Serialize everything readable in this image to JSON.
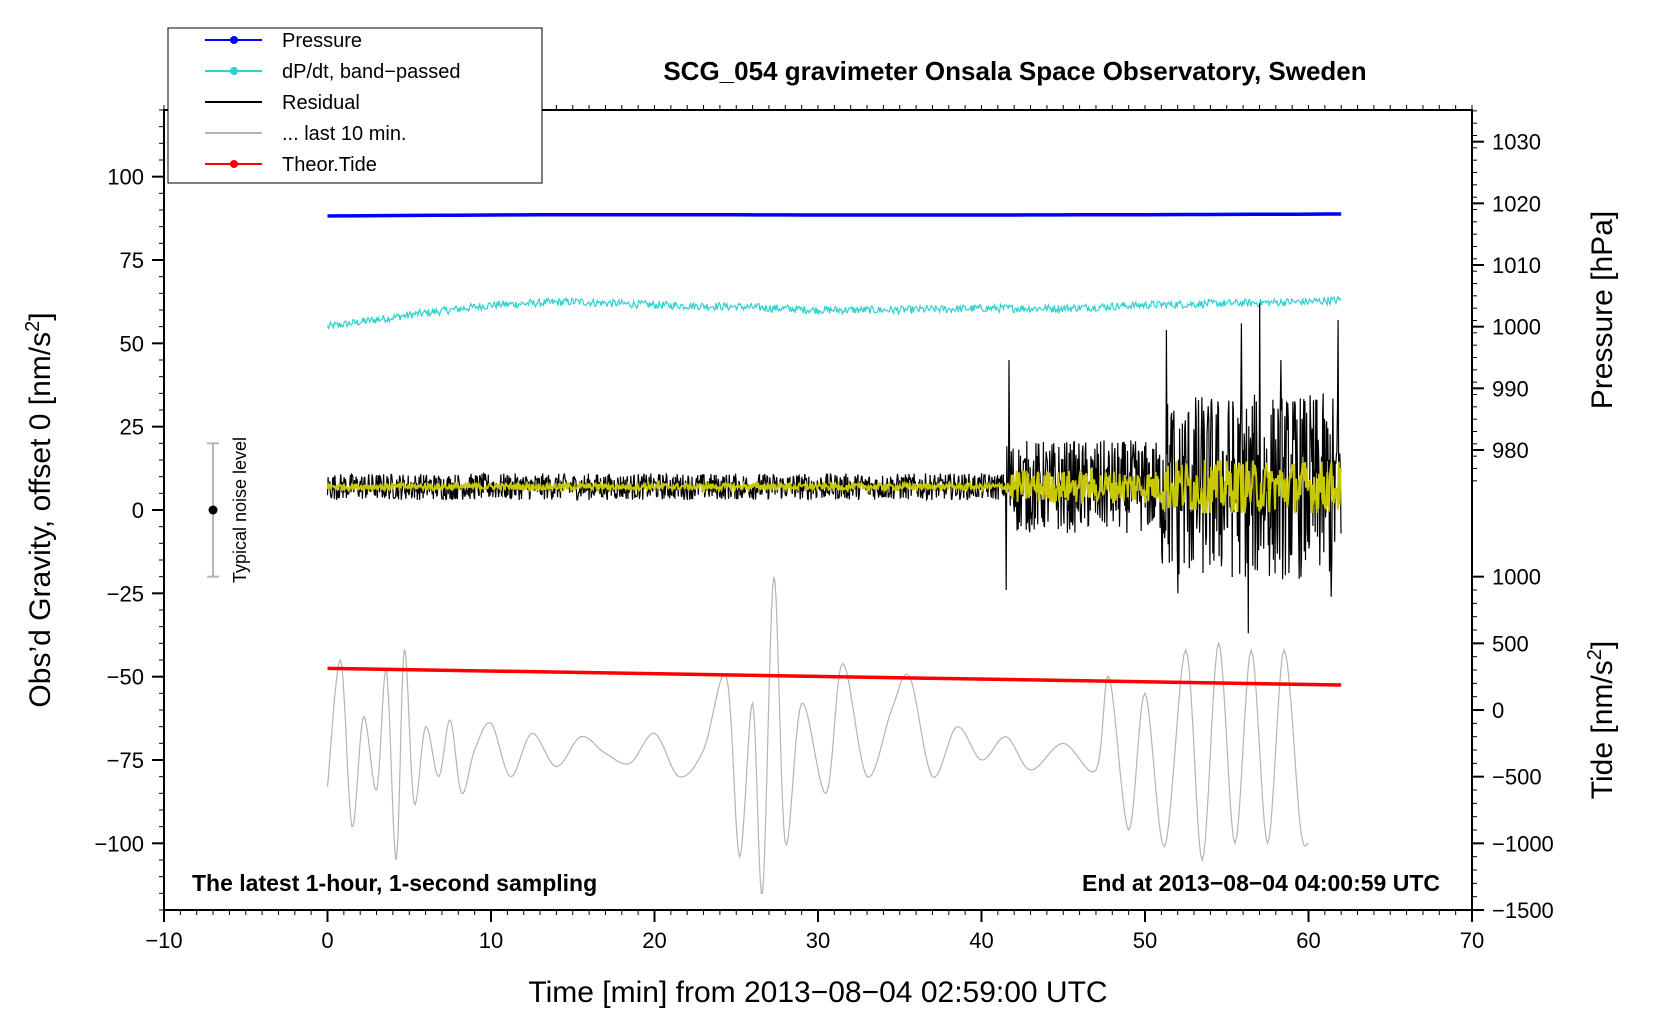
{
  "chart_data": {
    "type": "line",
    "title": "SCG_054 gravimeter Onsala Space Observatory, Sweden",
    "xlabel": "Time [min] from 2013−08−04 02:59:00 UTC",
    "ylabel": "Obs’d Gravity, offset 0 [nm/s²]",
    "ylabel_main": "Obs’d Gravity, offset 0 [nm/s",
    "ylabel_sup": "2",
    "ylabel_end": "]",
    "pressure_axis_label": "Pressure [hPa]",
    "tide_axis_label_main": "Tide [nm/s",
    "tide_axis_label_sup": "2",
    "tide_axis_label_end": "]",
    "xlim": [
      -10,
      70
    ],
    "ylim": [
      -120,
      120
    ],
    "x_ticks": [
      -10,
      0,
      10,
      20,
      30,
      40,
      50,
      60,
      70
    ],
    "x_tick_labels": [
      "−10",
      "0",
      "10",
      "20",
      "30",
      "40",
      "50",
      "60",
      "70"
    ],
    "y_ticks": [
      100,
      75,
      50,
      25,
      0,
      -25,
      -50,
      -75,
      -100
    ],
    "y_tick_labels": [
      "100",
      "75",
      "50",
      "25",
      "0",
      "−25",
      "−50",
      "−75",
      "−100"
    ],
    "pressure_axis": {
      "ticks": [
        1030,
        1020,
        1010,
        1000,
        990,
        980
      ],
      "tick_labels": [
        "1030",
        "1020",
        "1010",
        "1000",
        "990",
        "980"
      ],
      "anchor": {
        "value_a": 1030,
        "gravity_a": 110.5,
        "value_b": 980,
        "gravity_b": 18
      }
    },
    "tide_axis": {
      "ticks": [
        1000,
        500,
        0,
        -500,
        -1000,
        -1500
      ],
      "tick_labels": [
        "1000",
        "500",
        "0",
        "−500",
        "−1000",
        "−1500"
      ],
      "anchor": {
        "value_a": 1000,
        "gravity_a": -20,
        "value_b": -1500,
        "gravity_b": -120
      }
    },
    "annotation_left": "The latest 1-hour, 1-second sampling",
    "annotation_right": "End at 2013−08−04 04:00:59 UTC",
    "noise_label": "Typical noise level",
    "noise_bar": {
      "x": -7,
      "center": 0,
      "low": -20,
      "high": 20
    },
    "legend_position": "top-left",
    "legend": [
      {
        "label": "Pressure",
        "color": "#0000ff",
        "marker": true
      },
      {
        "label": "dP/dt, band−passed",
        "color": "#30d0d0",
        "marker": true
      },
      {
        "label": "Residual",
        "color": "#000000",
        "marker": false
      },
      {
        "label": "... last 10 min.",
        "color": "#b4b4b4",
        "marker": false
      },
      {
        "label": "Theor.Tide",
        "color": "#ff0000",
        "marker": true
      }
    ],
    "series": [
      {
        "name": "Pressure",
        "color": "#0000ff",
        "x": [
          0,
          10,
          20,
          30,
          40,
          50,
          62
        ],
        "y": [
          88.2,
          88.5,
          88.6,
          88.5,
          88.5,
          88.6,
          88.8
        ]
      },
      {
        "name": "dP/dt, band−passed",
        "color": "#30d0d0",
        "x": [
          0,
          5,
          10,
          15,
          20,
          25,
          30,
          35,
          40,
          45,
          50,
          55,
          60,
          62
        ],
        "y": [
          55,
          58.5,
          61.5,
          62.5,
          61.5,
          61,
          60,
          60,
          60.5,
          60.5,
          61.5,
          62,
          62.5,
          63
        ],
        "noise": [
          {
            "x0": 0,
            "x1": 62,
            "amp": 1.2
          }
        ]
      },
      {
        "name": "Residual",
        "color": "#000000",
        "x": [
          0,
          62
        ],
        "y": [
          7,
          7
        ],
        "noise": [
          {
            "x0": 0,
            "x1": 41.5,
            "amp": 4
          },
          {
            "x0": 41.5,
            "x1": 51,
            "amp": 14
          },
          {
            "x0": 51,
            "x1": 62,
            "amp": 28
          }
        ],
        "spikes": [
          {
            "x": 41.5,
            "y": -24
          },
          {
            "x": 41.7,
            "y": 45
          },
          {
            "x": 51.3,
            "y": 54
          },
          {
            "x": 52.0,
            "y": -25
          },
          {
            "x": 55.9,
            "y": 56
          },
          {
            "x": 56.3,
            "y": -37
          },
          {
            "x": 57.0,
            "y": 62
          },
          {
            "x": 58.3,
            "y": 45
          },
          {
            "x": 61.8,
            "y": 57
          },
          {
            "x": 61.4,
            "y": -26
          }
        ]
      },
      {
        "name": "Residual (smoothed)",
        "color": "#c8c800",
        "x": [
          0,
          62
        ],
        "y": [
          7,
          7
        ],
        "noise": [
          {
            "x0": 0,
            "x1": 41.5,
            "amp": 1
          },
          {
            "x0": 41.5,
            "x1": 51,
            "amp": 5
          },
          {
            "x0": 51,
            "x1": 62,
            "amp": 8
          }
        ]
      },
      {
        "name": "... last 10 min.",
        "color": "#b4b4b4",
        "x": [
          0,
          0.8,
          1.5,
          2.2,
          3,
          3.6,
          4.2,
          4.7,
          5.3,
          6,
          6.8,
          7.5,
          8.2,
          9,
          10,
          11.2,
          12.5,
          14,
          15.5,
          17,
          18.5,
          20,
          21.5,
          23,
          24.4,
          25.2,
          26.0,
          26.6,
          27.3,
          28,
          29,
          30.5,
          31.5,
          33,
          34.5,
          35.6,
          37,
          38.5,
          40,
          41.5,
          43,
          45,
          47,
          47.8,
          49,
          50,
          51.2,
          52.5,
          53.5,
          54.5,
          55.5,
          56.5,
          57.5,
          58.5,
          59.5,
          60.0
        ],
        "y": [
          -83,
          -45,
          -95,
          -62,
          -84,
          -48,
          -105,
          -42,
          -88,
          -65,
          -80,
          -63,
          -85,
          -72,
          -64,
          -80,
          -67,
          -77,
          -68,
          -73,
          -76,
          -67,
          -80,
          -72,
          -50,
          -104,
          -58,
          -115,
          -20,
          -100,
          -58,
          -85,
          -46,
          -80,
          -60,
          -50,
          -80,
          -65,
          -75,
          -68,
          -78,
          -70,
          -78,
          -50,
          -96,
          -55,
          -101,
          -42,
          -105,
          -40,
          -100,
          -42,
          -100,
          -42,
          -95,
          -100
        ]
      }
    ],
    "theoretical_tide": {
      "name": "Theor.Tide",
      "color": "#ff0000",
      "x": [
        0,
        62
      ],
      "y": [
        -47.5,
        -52.5
      ]
    }
  }
}
